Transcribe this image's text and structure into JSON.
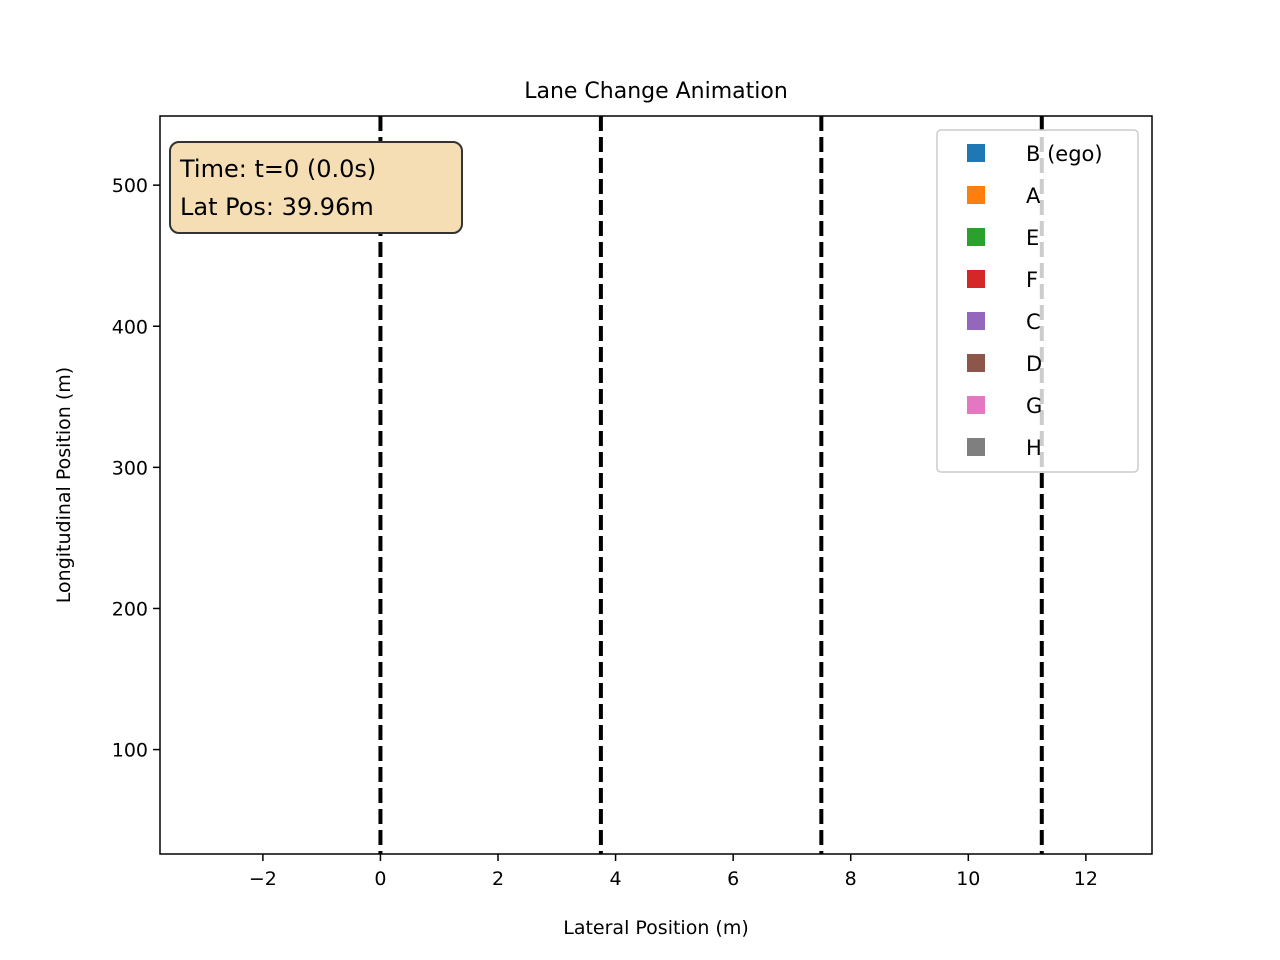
{
  "chart_data": {
    "type": "line",
    "title": "Lane Change Animation",
    "xlabel": "Lateral Position (m)",
    "ylabel": "Longitudinal Position (m)",
    "xlim": [
      -3.75,
      13.125
    ],
    "ylim": [
      26,
      549
    ],
    "xticks": [
      -2,
      0,
      2,
      4,
      6,
      8,
      10,
      12
    ],
    "yticks": [
      100,
      200,
      300,
      400,
      500
    ],
    "lane_lines": [
      0,
      3.75,
      7.5,
      11.25
    ],
    "lane_line_color": "#000000",
    "grid": false,
    "info_box": {
      "lines": [
        "Time: t=0 (0.0s)",
        "Lat Pos: 39.96m"
      ],
      "facecolor": "#f5deb3",
      "edgecolor": "#333333"
    },
    "legend": {
      "placement": "top-right",
      "entries": [
        {
          "label": "B (ego)",
          "color": "#1f77b4"
        },
        {
          "label": "A",
          "color": "#ff7f0e"
        },
        {
          "label": "E",
          "color": "#2ca02c"
        },
        {
          "label": "F",
          "color": "#d62728"
        },
        {
          "label": "C",
          "color": "#9467bd"
        },
        {
          "label": "D",
          "color": "#8c564b"
        },
        {
          "label": "G",
          "color": "#e377c2"
        },
        {
          "label": "H",
          "color": "#7f7f7f"
        }
      ]
    }
  }
}
